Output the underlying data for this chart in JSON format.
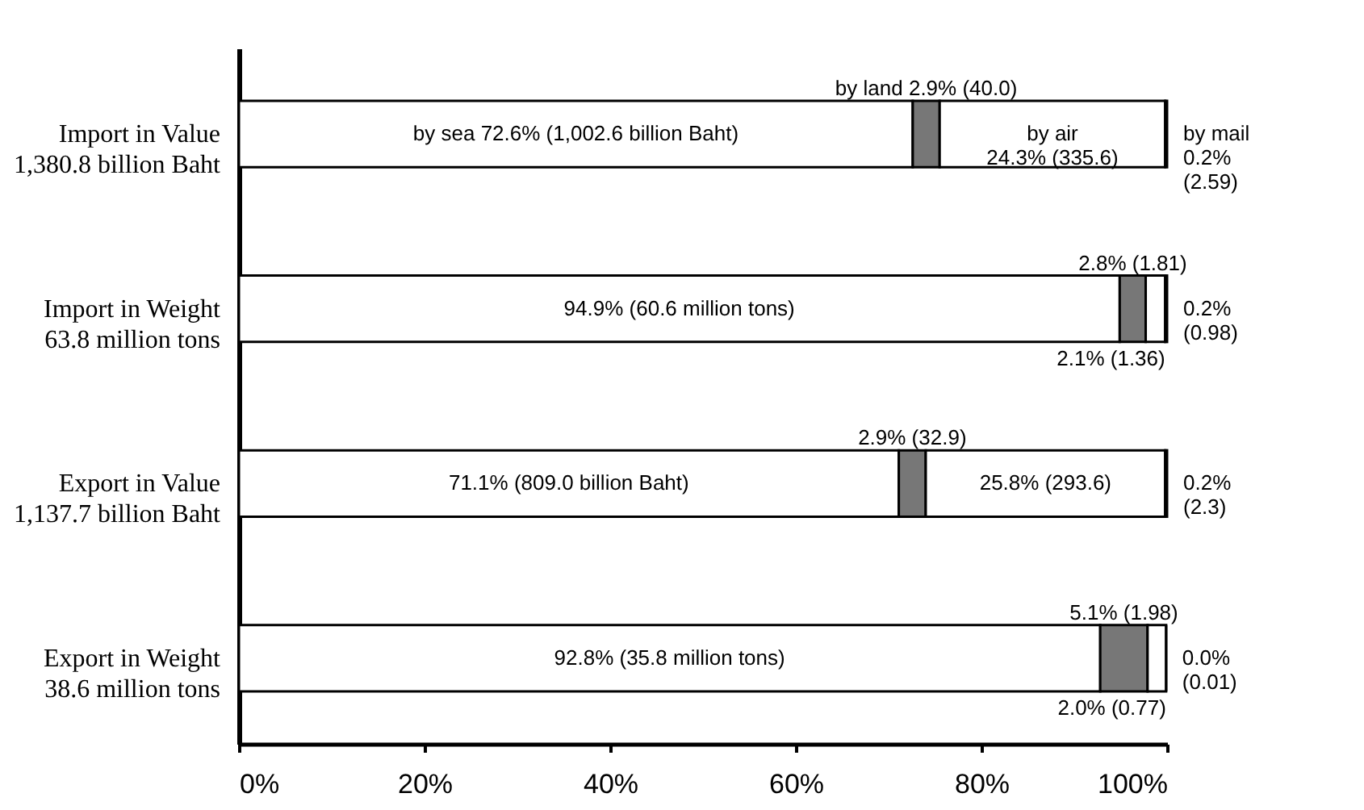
{
  "chart_data": {
    "type": "bar",
    "orientation": "horizontal",
    "stacked": true,
    "categories": [
      "Import in Value\n1,380.8 billion Baht",
      "Import in Weight\n63.8 million tons",
      "Export in Value\n1,137.7 billion Baht",
      "Export in Weight\n38.6 million tons"
    ],
    "series": [
      {
        "color": "#ffffff",
        "values": [
          72.6,
          94.9,
          71.1,
          92.8
        ],
        "value_labels": [
          "by sea 72.6% (1,002.6 billion Baht)",
          "94.9% (60.6 million tons)",
          "71.1% (809.0 billion Baht)",
          "92.8% (35.8 million tons)"
        ]
      },
      {
        "color": "#777777",
        "values": [
          2.9,
          2.8,
          2.9,
          5.1
        ],
        "value_labels": [
          "by land 2.9% (40.0)",
          "2.8% (1.81)",
          "2.9% (32.9)",
          "5.1% (1.98)"
        ]
      },
      {
        "color": "#ffffff",
        "values": [
          24.3,
          2.1,
          25.8,
          2.0
        ],
        "value_labels": [
          "by air\n24.3% (335.6)",
          "2.1% (1.36)",
          "25.8% (293.6)",
          "2.0% (0.77)"
        ]
      },
      {
        "color": "#000000",
        "values": [
          0.2,
          0.2,
          0.2,
          0.0
        ],
        "value_labels": [
          "by mail\n0.2%\n(2.59)",
          "0.2%\n(0.98)",
          "0.2%\n(2.3)",
          "0.0%\n(0.01)"
        ]
      }
    ],
    "xlim": [
      0,
      100
    ],
    "xticks": [
      {
        "value": 0,
        "label": "0%"
      },
      {
        "value": 20,
        "label": "20%"
      },
      {
        "value": 40,
        "label": "40%"
      },
      {
        "value": 60,
        "label": "60%"
      },
      {
        "value": 80,
        "label": "80%"
      },
      {
        "value": 100,
        "label": "100%"
      }
    ],
    "grid": false,
    "legend": false
  }
}
